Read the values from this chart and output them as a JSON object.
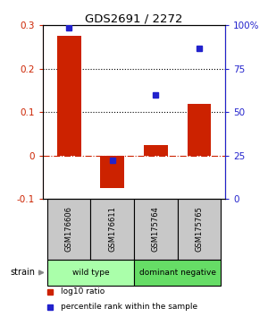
{
  "title": "GDS2691 / 2272",
  "samples": [
    "GSM176606",
    "GSM176611",
    "GSM175764",
    "GSM175765"
  ],
  "log10_ratio": [
    0.275,
    -0.075,
    0.025,
    0.12
  ],
  "percentile_rank": [
    98.5,
    22.0,
    60.0,
    87.0
  ],
  "bar_color": "#cc2200",
  "dot_color": "#2222cc",
  "ylim_left": [
    -0.1,
    0.3
  ],
  "ylim_right": [
    0,
    100
  ],
  "yticks_left": [
    -0.1,
    0.0,
    0.1,
    0.2,
    0.3
  ],
  "yticks_right": [
    0,
    25,
    50,
    75,
    100
  ],
  "yticklabels_right": [
    "0",
    "25",
    "50",
    "75",
    "100%"
  ],
  "hlines_dotted": [
    0.1,
    0.2
  ],
  "hline_dashdot_color": "#cc2200",
  "groups": [
    {
      "label": "wild type",
      "indices": [
        0,
        1
      ],
      "color": "#aaffaa"
    },
    {
      "label": "dominant negative",
      "indices": [
        2,
        3
      ],
      "color": "#66dd66"
    }
  ],
  "strain_label": "strain",
  "legend_items": [
    {
      "color": "#cc2200",
      "label": "log10 ratio"
    },
    {
      "color": "#2222cc",
      "label": "percentile rank within the sample"
    }
  ],
  "background_color": "#ffffff",
  "sample_box_color": "#c8c8c8"
}
